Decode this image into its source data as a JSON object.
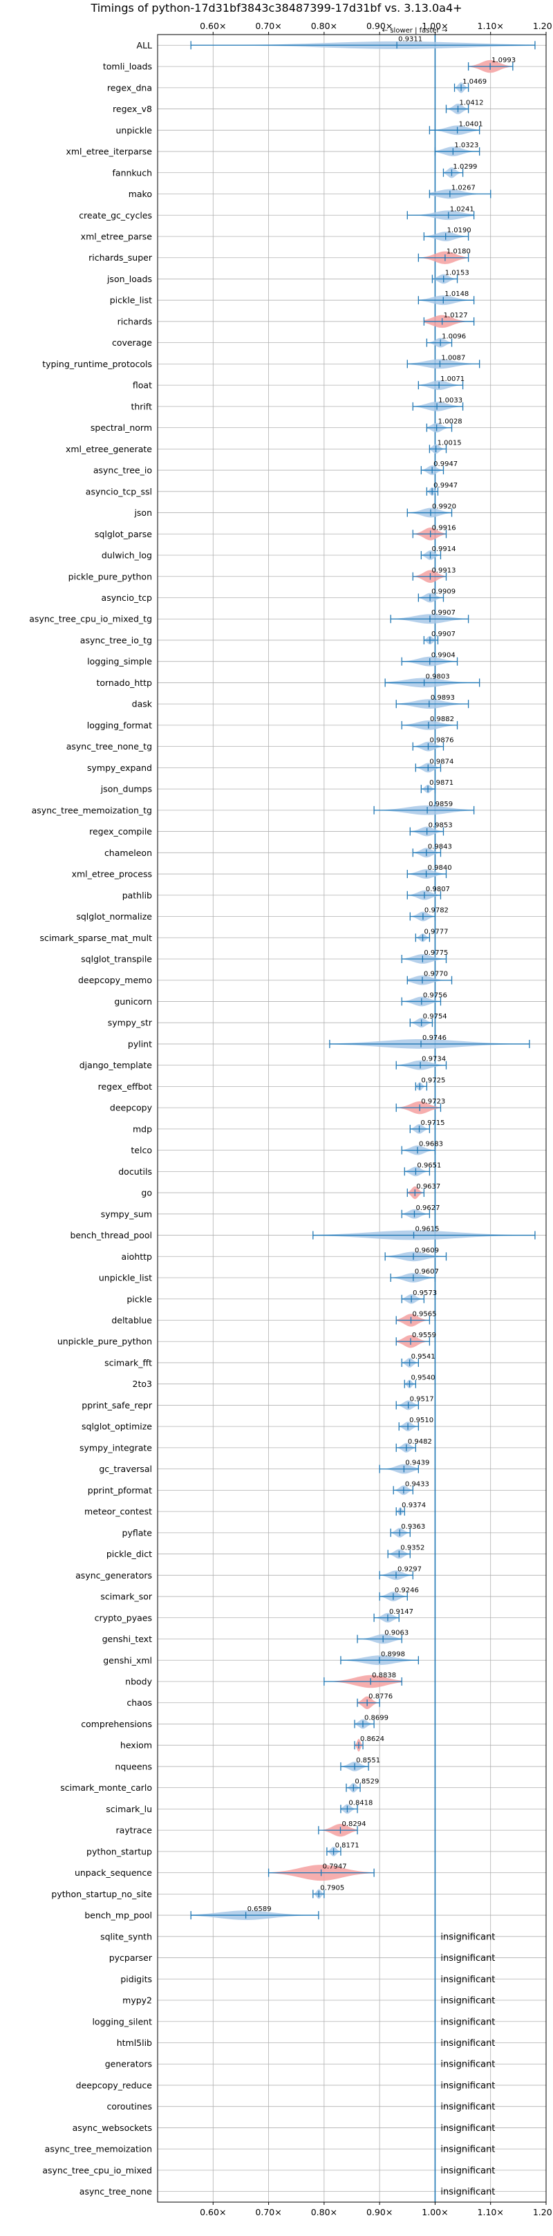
{
  "chart_data": {
    "type": "violin",
    "title": "Timings of python-17d31bf3843c38487399-17d31bf vs. 3.13.0a4+",
    "direction_annotation": "← slower  |  faster →",
    "xlim": [
      0.5,
      1.2
    ],
    "xticks": [
      0.6,
      0.7,
      0.8,
      0.9,
      1.0,
      1.1,
      1.2
    ],
    "xtick_labels": [
      "0.60×",
      "0.70×",
      "0.80×",
      "0.90×",
      "1.00×",
      "1.10×",
      "1.20×"
    ],
    "reference_line": 1.0,
    "grid": true,
    "colors": {
      "normal": "#a8c8e8",
      "significant": "#f4a0a0",
      "errorbar": "#1f77b4",
      "reference": "#1f77b4"
    },
    "insignificant_label": "insignificant",
    "benchmarks": [
      {
        "name": "ALL",
        "value": 0.9311,
        "min": 0.56,
        "max": 1.18,
        "width": 0.36,
        "label": "0.9311",
        "highlight": false
      },
      {
        "name": "tomli_loads",
        "value": 1.0993,
        "min": 1.06,
        "max": 1.14,
        "width": 0.6,
        "label": "1.0993",
        "highlight": true
      },
      {
        "name": "regex_dna",
        "value": 1.0469,
        "min": 1.035,
        "max": 1.06,
        "width": 0.5,
        "label": "1.0469",
        "highlight": false
      },
      {
        "name": "regex_v8",
        "value": 1.0412,
        "min": 1.02,
        "max": 1.06,
        "width": 0.5,
        "label": "1.0412",
        "highlight": false
      },
      {
        "name": "unpickle",
        "value": 1.0401,
        "min": 0.99,
        "max": 1.08,
        "width": 0.45,
        "label": "1.0401",
        "highlight": false
      },
      {
        "name": "xml_etree_iterparse",
        "value": 1.0323,
        "min": 1.0,
        "max": 1.08,
        "width": 0.45,
        "label": "1.0323",
        "highlight": false
      },
      {
        "name": "fannkuch",
        "value": 1.0299,
        "min": 1.015,
        "max": 1.05,
        "width": 0.5,
        "label": "1.0299",
        "highlight": false
      },
      {
        "name": "mako",
        "value": 1.0267,
        "min": 0.99,
        "max": 1.1,
        "width": 0.45,
        "label": "1.0267",
        "highlight": false
      },
      {
        "name": "create_gc_cycles",
        "value": 1.0241,
        "min": 0.95,
        "max": 1.07,
        "width": 0.45,
        "label": "1.0241",
        "highlight": false
      },
      {
        "name": "xml_etree_parse",
        "value": 1.019,
        "min": 0.98,
        "max": 1.06,
        "width": 0.45,
        "label": "1.0190",
        "highlight": false
      },
      {
        "name": "richards_super",
        "value": 1.018,
        "min": 0.97,
        "max": 1.06,
        "width": 0.6,
        "label": "1.0180",
        "highlight": true
      },
      {
        "name": "json_loads",
        "value": 1.0153,
        "min": 0.995,
        "max": 1.04,
        "width": 0.45,
        "label": "1.0153",
        "highlight": false
      },
      {
        "name": "pickle_list",
        "value": 1.0148,
        "min": 0.97,
        "max": 1.07,
        "width": 0.45,
        "label": "1.0148",
        "highlight": false
      },
      {
        "name": "richards",
        "value": 1.0127,
        "min": 0.98,
        "max": 1.07,
        "width": 0.6,
        "label": "1.0127",
        "highlight": true
      },
      {
        "name": "coverage",
        "value": 1.0096,
        "min": 0.985,
        "max": 1.03,
        "width": 0.45,
        "label": "1.0096",
        "highlight": false
      },
      {
        "name": "typing_runtime_protocols",
        "value": 1.0087,
        "min": 0.95,
        "max": 1.08,
        "width": 0.45,
        "label": "1.0087",
        "highlight": false
      },
      {
        "name": "float",
        "value": 1.0071,
        "min": 0.97,
        "max": 1.05,
        "width": 0.45,
        "label": "1.0071",
        "highlight": false
      },
      {
        "name": "thrift",
        "value": 1.0033,
        "min": 0.96,
        "max": 1.05,
        "width": 0.45,
        "label": "1.0033",
        "highlight": false
      },
      {
        "name": "spectral_norm",
        "value": 1.0028,
        "min": 0.985,
        "max": 1.03,
        "width": 0.45,
        "label": "1.0028",
        "highlight": false
      },
      {
        "name": "xml_etree_generate",
        "value": 1.0015,
        "min": 0.99,
        "max": 1.02,
        "width": 0.45,
        "label": "1.0015",
        "highlight": false
      },
      {
        "name": "async_tree_io",
        "value": 0.9947,
        "min": 0.975,
        "max": 1.015,
        "width": 0.45,
        "label": "0.9947",
        "highlight": false
      },
      {
        "name": "asyncio_tcp_ssl",
        "value": 0.9947,
        "min": 0.985,
        "max": 1.005,
        "width": 0.4,
        "label": "0.9947",
        "highlight": false
      },
      {
        "name": "json",
        "value": 0.992,
        "min": 0.95,
        "max": 1.03,
        "width": 0.45,
        "label": "0.9920",
        "highlight": false
      },
      {
        "name": "sqlglot_parse",
        "value": 0.9916,
        "min": 0.96,
        "max": 1.02,
        "width": 0.6,
        "label": "0.9916",
        "highlight": true
      },
      {
        "name": "dulwich_log",
        "value": 0.9914,
        "min": 0.975,
        "max": 1.01,
        "width": 0.45,
        "label": "0.9914",
        "highlight": false
      },
      {
        "name": "pickle_pure_python",
        "value": 0.9913,
        "min": 0.96,
        "max": 1.02,
        "width": 0.6,
        "label": "0.9913",
        "highlight": true
      },
      {
        "name": "asyncio_tcp",
        "value": 0.9909,
        "min": 0.97,
        "max": 1.015,
        "width": 0.45,
        "label": "0.9909",
        "highlight": false
      },
      {
        "name": "async_tree_cpu_io_mixed_tg",
        "value": 0.9907,
        "min": 0.92,
        "max": 1.06,
        "width": 0.45,
        "label": "0.9907",
        "highlight": false
      },
      {
        "name": "async_tree_io_tg",
        "value": 0.9907,
        "min": 0.98,
        "max": 1.005,
        "width": 0.4,
        "label": "0.9907",
        "highlight": false
      },
      {
        "name": "logging_simple",
        "value": 0.9904,
        "min": 0.94,
        "max": 1.04,
        "width": 0.45,
        "label": "0.9904",
        "highlight": false
      },
      {
        "name": "tornado_http",
        "value": 0.9803,
        "min": 0.91,
        "max": 1.08,
        "width": 0.45,
        "label": "0.9803",
        "highlight": false
      },
      {
        "name": "dask",
        "value": 0.9893,
        "min": 0.93,
        "max": 1.06,
        "width": 0.45,
        "label": "0.9893",
        "highlight": false
      },
      {
        "name": "logging_format",
        "value": 0.9882,
        "min": 0.94,
        "max": 1.04,
        "width": 0.45,
        "label": "0.9882",
        "highlight": false
      },
      {
        "name": "async_tree_none_tg",
        "value": 0.9876,
        "min": 0.96,
        "max": 1.015,
        "width": 0.45,
        "label": "0.9876",
        "highlight": false
      },
      {
        "name": "sympy_expand",
        "value": 0.9874,
        "min": 0.965,
        "max": 1.01,
        "width": 0.45,
        "label": "0.9874",
        "highlight": false
      },
      {
        "name": "json_dumps",
        "value": 0.9871,
        "min": 0.975,
        "max": 1.0,
        "width": 0.4,
        "label": "0.9871",
        "highlight": false
      },
      {
        "name": "async_tree_memoization_tg",
        "value": 0.9859,
        "min": 0.89,
        "max": 1.07,
        "width": 0.45,
        "label": "0.9859",
        "highlight": false
      },
      {
        "name": "regex_compile",
        "value": 0.9853,
        "min": 0.955,
        "max": 1.015,
        "width": 0.45,
        "label": "0.9853",
        "highlight": false
      },
      {
        "name": "chameleon",
        "value": 0.9843,
        "min": 0.96,
        "max": 1.01,
        "width": 0.45,
        "label": "0.9843",
        "highlight": false
      },
      {
        "name": "xml_etree_process",
        "value": 0.984,
        "min": 0.95,
        "max": 1.02,
        "width": 0.45,
        "label": "0.9840",
        "highlight": false
      },
      {
        "name": "pathlib",
        "value": 0.9807,
        "min": 0.95,
        "max": 1.01,
        "width": 0.45,
        "label": "0.9807",
        "highlight": false
      },
      {
        "name": "sqlglot_normalize",
        "value": 0.9782,
        "min": 0.955,
        "max": 1.0,
        "width": 0.45,
        "label": "0.9782",
        "highlight": false
      },
      {
        "name": "scimark_sparse_mat_mult",
        "value": 0.9777,
        "min": 0.965,
        "max": 0.99,
        "width": 0.4,
        "label": "0.9777",
        "highlight": false
      },
      {
        "name": "sqlglot_transpile",
        "value": 0.9775,
        "min": 0.94,
        "max": 1.02,
        "width": 0.45,
        "label": "0.9775",
        "highlight": false
      },
      {
        "name": "deepcopy_memo",
        "value": 0.977,
        "min": 0.95,
        "max": 1.03,
        "width": 0.45,
        "label": "0.9770",
        "highlight": false
      },
      {
        "name": "gunicorn",
        "value": 0.9756,
        "min": 0.94,
        "max": 1.01,
        "width": 0.45,
        "label": "0.9756",
        "highlight": false
      },
      {
        "name": "sympy_str",
        "value": 0.9754,
        "min": 0.955,
        "max": 0.995,
        "width": 0.45,
        "label": "0.9754",
        "highlight": false
      },
      {
        "name": "pylint",
        "value": 0.9746,
        "min": 0.81,
        "max": 1.17,
        "width": 0.45,
        "label": "0.9746",
        "highlight": false
      },
      {
        "name": "django_template",
        "value": 0.9734,
        "min": 0.93,
        "max": 1.02,
        "width": 0.45,
        "label": "0.9734",
        "highlight": false
      },
      {
        "name": "regex_effbot",
        "value": 0.9725,
        "min": 0.965,
        "max": 0.985,
        "width": 0.4,
        "label": "0.9725",
        "highlight": false
      },
      {
        "name": "deepcopy",
        "value": 0.9723,
        "min": 0.93,
        "max": 1.01,
        "width": 0.6,
        "label": "0.9723",
        "highlight": true
      },
      {
        "name": "mdp",
        "value": 0.9715,
        "min": 0.955,
        "max": 0.99,
        "width": 0.45,
        "label": "0.9715",
        "highlight": false
      },
      {
        "name": "telco",
        "value": 0.9683,
        "min": 0.94,
        "max": 1.0,
        "width": 0.45,
        "label": "0.9683",
        "highlight": false
      },
      {
        "name": "docutils",
        "value": 0.9651,
        "min": 0.945,
        "max": 0.99,
        "width": 0.45,
        "label": "0.9651",
        "highlight": false
      },
      {
        "name": "go",
        "value": 0.9637,
        "min": 0.95,
        "max": 0.98,
        "width": 0.6,
        "label": "0.9637",
        "highlight": true
      },
      {
        "name": "sympy_sum",
        "value": 0.9627,
        "min": 0.94,
        "max": 0.99,
        "width": 0.45,
        "label": "0.9627",
        "highlight": false
      },
      {
        "name": "bench_thread_pool",
        "value": 0.9615,
        "min": 0.78,
        "max": 1.18,
        "width": 0.45,
        "label": "0.9615",
        "highlight": false
      },
      {
        "name": "aiohttp",
        "value": 0.9609,
        "min": 0.91,
        "max": 1.02,
        "width": 0.45,
        "label": "0.9609",
        "highlight": false
      },
      {
        "name": "unpickle_list",
        "value": 0.9607,
        "min": 0.92,
        "max": 1.0,
        "width": 0.45,
        "label": "0.9607",
        "highlight": false
      },
      {
        "name": "pickle",
        "value": 0.9573,
        "min": 0.94,
        "max": 0.98,
        "width": 0.45,
        "label": "0.9573",
        "highlight": false
      },
      {
        "name": "deltablue",
        "value": 0.9565,
        "min": 0.93,
        "max": 0.99,
        "width": 0.6,
        "label": "0.9565",
        "highlight": true
      },
      {
        "name": "unpickle_pure_python",
        "value": 0.9559,
        "min": 0.93,
        "max": 0.99,
        "width": 0.6,
        "label": "0.9559",
        "highlight": true
      },
      {
        "name": "scimark_fft",
        "value": 0.9541,
        "min": 0.94,
        "max": 0.97,
        "width": 0.45,
        "label": "0.9541",
        "highlight": false
      },
      {
        "name": "2to3",
        "value": 0.954,
        "min": 0.945,
        "max": 0.965,
        "width": 0.4,
        "label": "0.9540",
        "highlight": false
      },
      {
        "name": "pprint_safe_repr",
        "value": 0.9517,
        "min": 0.93,
        "max": 0.97,
        "width": 0.45,
        "label": "0.9517",
        "highlight": false
      },
      {
        "name": "sqlglot_optimize",
        "value": 0.951,
        "min": 0.935,
        "max": 0.97,
        "width": 0.45,
        "label": "0.9510",
        "highlight": false
      },
      {
        "name": "sympy_integrate",
        "value": 0.9482,
        "min": 0.93,
        "max": 0.965,
        "width": 0.45,
        "label": "0.9482",
        "highlight": false
      },
      {
        "name": "gc_traversal",
        "value": 0.9439,
        "min": 0.9,
        "max": 0.97,
        "width": 0.45,
        "label": "0.9439",
        "highlight": false
      },
      {
        "name": "pprint_pformat",
        "value": 0.9433,
        "min": 0.925,
        "max": 0.96,
        "width": 0.45,
        "label": "0.9433",
        "highlight": false
      },
      {
        "name": "meteor_contest",
        "value": 0.9374,
        "min": 0.93,
        "max": 0.945,
        "width": 0.4,
        "label": "0.9374",
        "highlight": false
      },
      {
        "name": "pyflate",
        "value": 0.9363,
        "min": 0.92,
        "max": 0.955,
        "width": 0.45,
        "label": "0.9363",
        "highlight": false
      },
      {
        "name": "pickle_dict",
        "value": 0.9352,
        "min": 0.915,
        "max": 0.955,
        "width": 0.45,
        "label": "0.9352",
        "highlight": false
      },
      {
        "name": "async_generators",
        "value": 0.9297,
        "min": 0.9,
        "max": 0.96,
        "width": 0.45,
        "label": "0.9297",
        "highlight": false
      },
      {
        "name": "scimark_sor",
        "value": 0.9246,
        "min": 0.9,
        "max": 0.95,
        "width": 0.45,
        "label": "0.9246",
        "highlight": false
      },
      {
        "name": "crypto_pyaes",
        "value": 0.9147,
        "min": 0.89,
        "max": 0.935,
        "width": 0.45,
        "label": "0.9147",
        "highlight": false
      },
      {
        "name": "genshi_text",
        "value": 0.9063,
        "min": 0.86,
        "max": 0.94,
        "width": 0.45,
        "label": "0.9063",
        "highlight": false
      },
      {
        "name": "genshi_xml",
        "value": 0.8998,
        "min": 0.83,
        "max": 0.97,
        "width": 0.45,
        "label": "0.8998",
        "highlight": false
      },
      {
        "name": "nbody",
        "value": 0.8838,
        "min": 0.8,
        "max": 0.94,
        "width": 0.6,
        "label": "0.8838",
        "highlight": true
      },
      {
        "name": "chaos",
        "value": 0.8776,
        "min": 0.86,
        "max": 0.9,
        "width": 0.6,
        "label": "0.8776",
        "highlight": true
      },
      {
        "name": "comprehensions",
        "value": 0.8699,
        "min": 0.855,
        "max": 0.89,
        "width": 0.45,
        "label": "0.8699",
        "highlight": false
      },
      {
        "name": "hexiom",
        "value": 0.8624,
        "min": 0.855,
        "max": 0.87,
        "width": 0.6,
        "label": "0.8624",
        "highlight": true
      },
      {
        "name": "nqueens",
        "value": 0.8551,
        "min": 0.83,
        "max": 0.88,
        "width": 0.45,
        "label": "0.8551",
        "highlight": false
      },
      {
        "name": "scimark_monte_carlo",
        "value": 0.8529,
        "min": 0.84,
        "max": 0.865,
        "width": 0.45,
        "label": "0.8529",
        "highlight": false
      },
      {
        "name": "scimark_lu",
        "value": 0.8418,
        "min": 0.83,
        "max": 0.86,
        "width": 0.45,
        "label": "0.8418",
        "highlight": false
      },
      {
        "name": "raytrace",
        "value": 0.8294,
        "min": 0.79,
        "max": 0.86,
        "width": 0.6,
        "label": "0.8294",
        "highlight": true
      },
      {
        "name": "python_startup",
        "value": 0.8171,
        "min": 0.805,
        "max": 0.83,
        "width": 0.45,
        "label": "0.8171",
        "highlight": false
      },
      {
        "name": "unpack_sequence",
        "value": 0.7947,
        "min": 0.7,
        "max": 0.89,
        "width": 0.75,
        "label": "0.7947",
        "highlight": true
      },
      {
        "name": "python_startup_no_site",
        "value": 0.7905,
        "min": 0.78,
        "max": 0.8,
        "width": 0.45,
        "label": "0.7905",
        "highlight": false
      },
      {
        "name": "bench_mp_pool",
        "value": 0.6589,
        "min": 0.56,
        "max": 0.79,
        "width": 0.45,
        "label": "0.6589",
        "highlight": false
      },
      {
        "name": "sqlite_synth",
        "insignificant": true
      },
      {
        "name": "pycparser",
        "insignificant": true
      },
      {
        "name": "pidigits",
        "insignificant": true
      },
      {
        "name": "mypy2",
        "insignificant": true
      },
      {
        "name": "logging_silent",
        "insignificant": true
      },
      {
        "name": "html5lib",
        "insignificant": true
      },
      {
        "name": "generators",
        "insignificant": true
      },
      {
        "name": "deepcopy_reduce",
        "insignificant": true
      },
      {
        "name": "coroutines",
        "insignificant": true
      },
      {
        "name": "async_websockets",
        "insignificant": true
      },
      {
        "name": "async_tree_memoization",
        "insignificant": true
      },
      {
        "name": "async_tree_cpu_io_mixed",
        "insignificant": true
      },
      {
        "name": "async_tree_none",
        "insignificant": true
      }
    ]
  }
}
